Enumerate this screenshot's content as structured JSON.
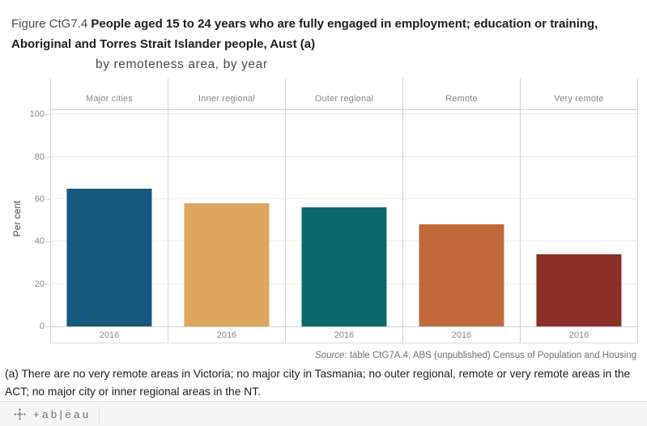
{
  "title": {
    "figure_label": "Figure CtG7.4 ",
    "line1_bold": "People aged 15 to 24 years who are fully engaged in employment; education or training,",
    "line2_bold": "Aboriginal and Torres Strait Islander people, Aust (a)",
    "subtitle": "by remoteness area, by year"
  },
  "chart_data": {
    "type": "bar",
    "title": "People aged 15 to 24 years who are fully engaged in employment; education or training, Aboriginal and Torres Strait Islander people, Aust (a)",
    "subtitle": "by remoteness area, by year",
    "categories": [
      "Major cities",
      "Inner regional",
      "Outer regional",
      "Remote",
      "Very remote"
    ],
    "year_label": "2016",
    "values": [
      65,
      58,
      56,
      48,
      34
    ],
    "bar_colors": [
      "#15597f",
      "#dda55e",
      "#0c686c",
      "#c1693b",
      "#8b3026"
    ],
    "xlabel": "",
    "ylabel": "Per cent",
    "ylim": [
      0,
      102
    ],
    "yticks": [
      0,
      20,
      40,
      60,
      80,
      100
    ],
    "grid": "horizontal",
    "legend": "none"
  },
  "source": {
    "label": "Source",
    "text": ": table CtG7A.4, ABS (unpublished) Census of Population and Housing"
  },
  "footnote": "(a) There are no very remote areas in Victoria; no major city in Tasmania; no outer regional, remote or very remote areas in the ACT; no major city or inner regional areas in the NT.",
  "footer": {
    "logo_text": "+ab|eau"
  },
  "colors": {
    "gridline": "#ebebeb",
    "panel_border": "#d4d4d4",
    "axis_text": "#878787",
    "footer_bg": "#f5f5f5"
  }
}
